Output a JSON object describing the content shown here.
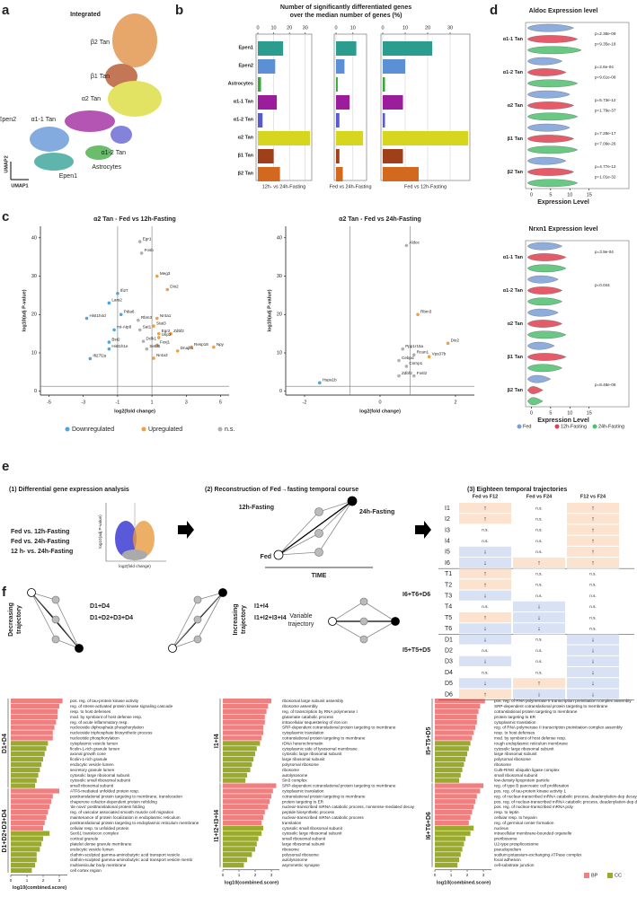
{
  "panel_labels": [
    "a",
    "b",
    "c",
    "d",
    "e",
    "f"
  ],
  "panel_a": {
    "title": "Integrated",
    "clusters": [
      "β2 Tan",
      "β1 Tan",
      "α2 Tan",
      "α1-1 Tan",
      "Epen2",
      "Epen1",
      "α1-2 Tan",
      "Astrocytes"
    ],
    "y_axis": "UMAP2",
    "x_axis": "UMAP1"
  },
  "chart_data": [
    {
      "type": "facet-bar",
      "title": [
        "Number of significantly differentiated genes",
        "over the median number of genes (%)"
      ],
      "categories": [
        "Epen1",
        "Epen2",
        "Astrocytes",
        "α1-1 Tan",
        "α1-2 Tan",
        "α2 Tan",
        "β1 Tan",
        "β2 Tan"
      ],
      "colors": [
        "#2a9d8f",
        "#5b8fd6",
        "#3aa63a",
        "#9b1d9b",
        "#5a5acf",
        "#d6d61f",
        "#a0401a",
        "#d2691e"
      ],
      "panels": [
        {
          "label": "12h- vs 24h-Fasting",
          "values": [
            16,
            11,
            2,
            12,
            3,
            33,
            10,
            14
          ],
          "xlim": [
            0,
            33
          ],
          "xticks": [
            0,
            10,
            20,
            30
          ]
        },
        {
          "label": "Fed vs 24h-Fasting",
          "values": [
            12,
            5,
            1,
            8,
            2,
            16,
            2,
            4
          ],
          "xlim": [
            0,
            17
          ],
          "xticks": [
            0,
            10
          ]
        },
        {
          "label": "Fed vs 12h-Fasting",
          "values": [
            22,
            10,
            1,
            9,
            1,
            38,
            9,
            16
          ],
          "xlim": [
            0,
            38
          ],
          "xticks": [
            0,
            10,
            20,
            30
          ]
        }
      ]
    },
    {
      "type": "volcano",
      "title": "α2 Tan - Fed vs 12h-Fasting",
      "x_label": "log2(fold change)",
      "y_label": "log10(adj P-value)",
      "xlim": [
        -5.5,
        5.5
      ],
      "xticks": [
        -5,
        -3,
        -1,
        1,
        3,
        5
      ],
      "ylim": [
        -1,
        43
      ],
      "yticks": [
        0,
        10,
        20,
        30,
        40
      ],
      "vlines": [
        -1,
        1
      ],
      "hline": 1.3,
      "series": [
        {
          "name": "Downregulated",
          "color": "#4da6e0",
          "x": [
            -1.0,
            -1.5,
            -0.8,
            -2.8,
            -1.2,
            -1.5,
            -1.5,
            -2.6
          ],
          "values": [
            25.5,
            23,
            20,
            19,
            16,
            12.8,
            11,
            8.5
          ],
          "labels": [
            "Ifi27",
            "Lars2",
            "Pdia6",
            "Hist1h4d",
            "mt-Atp8",
            "Bst2",
            "Hist1h1e",
            "Ifi27l2a"
          ]
        },
        {
          "name": "Upregulated",
          "color": "#f0a040",
          "x": [
            1.3,
            1.9,
            1.3,
            1.1,
            1.4,
            2.1,
            1.4,
            3.3,
            4.6,
            1.3,
            2.5,
            1.1
          ],
          "values": [
            30,
            26.5,
            19,
            17,
            15,
            15,
            14,
            11.5,
            11.5,
            12,
            10.5,
            8.6
          ],
          "labels": [
            "Meg3",
            "Dio2",
            "Nr4a1",
            "Stat3",
            "Egr2",
            "Zdbf2",
            "Usp2",
            "Resp18",
            "Npy",
            "Foxj1",
            "Dnajb1",
            "Nr4a3"
          ]
        },
        {
          "name": "n.s.",
          "color": "#b0b0b0",
          "x": [
            0.3,
            0.4,
            0.2,
            0.3,
            0.5,
            0.7
          ],
          "values": [
            39,
            36,
            18.5,
            16,
            13,
            11
          ],
          "labels": [
            "Egr1",
            "Fosb",
            "Rbm3",
            "Sat1",
            "Dclk1",
            "Setd5"
          ]
        }
      ]
    },
    {
      "type": "volcano",
      "title": "α2 Tan - Fed vs 24h-Fasting",
      "x_label": "log2(fold change)",
      "y_label": "log10(adj P-value)",
      "xlim": [
        -2.5,
        2.5
      ],
      "xticks": [
        -2,
        0,
        2
      ],
      "ylim": [
        -1,
        43
      ],
      "yticks": [
        0,
        10,
        20,
        30,
        40
      ],
      "vlines": [
        -0.8,
        0.8
      ],
      "hline": 1.3,
      "series": [
        {
          "name": "Downregulated",
          "color": "#4da6e0",
          "x": [
            -1.6
          ],
          "values": [
            2.2
          ],
          "labels": [
            "Hspa1b"
          ]
        },
        {
          "name": "Upregulated",
          "color": "#f0a040",
          "x": [
            1.0,
            1.8,
            1.3
          ],
          "values": [
            20,
            12.5,
            9
          ],
          "labels": [
            "Rbm3",
            "Dio2",
            "Vps37b"
          ]
        },
        {
          "name": "n.s.",
          "color": "#b0b0b0",
          "x": [
            0.7,
            0.6,
            0.9,
            0.5,
            0.7,
            0.5,
            0.9
          ],
          "values": [
            38,
            11,
            9.5,
            8,
            6.5,
            4,
            4
          ],
          "labels": [
            "Aldoc",
            "Ppp1r15a",
            "Rcan1",
            "Cebpd",
            "Csrnp1",
            "Zdbf2",
            "Fosl2"
          ]
        }
      ]
    },
    {
      "type": "violin",
      "title": "Aldoc Expression level",
      "x_label": "Expression Level",
      "xlim": [
        -1.5,
        16
      ],
      "xticks": [
        0,
        5,
        10,
        15
      ],
      "categories": [
        "α1-1 Tan",
        "α1-2 Tan",
        "α2 Tan",
        "β1 Tan",
        "β2 Tan"
      ],
      "p_values": [
        [
          "p=2.38e-09",
          "p=9.35e-18"
        ],
        [
          "p=2.6e-04",
          "p=9.61e-08"
        ],
        [
          "p=5.73e-12",
          "p=1.79e-37"
        ],
        [
          "p=7.28e-17",
          "p=7.09e-26"
        ],
        [
          "p=4.77e-12",
          "p=1.01e-32"
        ]
      ],
      "series": [
        {
          "name": "Fed",
          "color": "#7b9fd6",
          "values": [
            11,
            8,
            10,
            10,
            9
          ]
        },
        {
          "name": "12h-Fasting",
          "color": "#e04050",
          "values": [
            12,
            9,
            11,
            11,
            11
          ]
        },
        {
          "name": "24h-Fasting",
          "color": "#4fbf6f",
          "values": [
            13,
            12,
            12,
            12,
            12
          ]
        }
      ]
    },
    {
      "type": "violin",
      "title": "Nrxn1 Expression level",
      "x_label": "Expression Level",
      "xlim": [
        -1.5,
        16
      ],
      "xticks": [
        0,
        5,
        10,
        15
      ],
      "categories": [
        "α1-1 Tan",
        "α1-2 Tan",
        "α2 Tan",
        "β1 Tan",
        "β2 Tan"
      ],
      "p_values": [
        [
          "p=3.9e-04"
        ],
        [
          "p=0.044"
        ],
        [],
        [],
        [
          "p=8.48e-06"
        ]
      ],
      "legend": "bottom",
      "series": [
        {
          "name": "Fed",
          "color": "#7b9fd6",
          "values": [
            8,
            7,
            7,
            6,
            5
          ]
        },
        {
          "name": "12h-Fasting",
          "color": "#e04050",
          "values": [
            9,
            8,
            8,
            9,
            3
          ]
        },
        {
          "name": "24h-Fasting",
          "color": "#4fbf6f",
          "values": [
            9,
            8,
            9,
            8,
            3
          ]
        }
      ]
    },
    {
      "type": "go-bar",
      "x_label": "log10(combined.score)",
      "xlim": [
        0,
        3.5
      ],
      "xticks": [
        0,
        1,
        2,
        3
      ],
      "bp_color": "#f08080",
      "cc_color": "#9aaa2a",
      "label_color": "#2a2ad0",
      "groups": [
        {
          "label": "D1+D4",
          "bp_terms": [
            "pos. reg. of tau-protein kinase activity",
            "reg. of stress-activated protein kinase signaling cascade",
            "resp. to host defenses",
            "mod. by symbiont of host defense resp.",
            "reg. of acute inflammatory resp.",
            "nucleoside diphosphate phosphorylation",
            "nucleoside triphosphate biosynthetic process",
            "nucleotide phosphorylation"
          ],
          "bp_values": [
            3.2,
            3.0,
            2.9,
            2.9,
            2.8,
            2.7,
            2.6,
            2.6
          ],
          "cc_terms": [
            "cytoplasmic vesicle lumen",
            "ficolin-1-rich granule lumen",
            "axonal growth cone",
            "ficolin-1-rich granule",
            "endocytic vesicle lumen",
            "secretory granule lumen",
            "cytosolic large ribosomal subunit",
            "cytosolic small ribosomal subunit",
            "small ribosomal subunit"
          ],
          "cc_values": [
            2.3,
            2.2,
            2.1,
            2.0,
            1.9,
            1.8,
            1.7,
            1.6,
            1.5
          ]
        },
        {
          "label": "D1+D2+D3+D4",
          "bp_terms": [
            "ATF6-mediated unfolded protein resp.",
            "posttranslational protein targeting to membrane, translocation",
            "chaperone cofactor-dependent protein refolding",
            "'de novo' posttranslational protein folding",
            "reg. of vascular associated smooth muscle cell migration",
            "maintenance of protein localization in endoplasmic reticulum",
            "posttranslational protein targeting to endoplasmic reticulum membrane",
            "cellular resp. to unfolded protein"
          ],
          "bp_values": [
            3.0,
            2.6,
            2.5,
            2.4,
            2.3,
            2.2,
            2.1,
            2.0
          ],
          "cc_terms": [
            "Sec61 translocon complex",
            "cortical granule",
            "platelet dense granule membrane",
            "endocytic vesicle lumen",
            "clathrin-sculpted gamma-aminobutyric acid transport vesicle",
            "clathrin-sculpted gamma-aminobutyric acid transport vesicle memb",
            "multivesicular body membrane",
            "cell cortex region"
          ],
          "cc_values": [
            2.4,
            2.0,
            1.9,
            1.8,
            1.6,
            1.6,
            1.5,
            1.3
          ]
        }
      ]
    },
    {
      "type": "go-bar",
      "x_label": "log10(combined.score)",
      "xlim": [
        0,
        3.5
      ],
      "xticks": [
        0,
        1,
        2,
        3
      ],
      "bp_color": "#f08080",
      "cc_color": "#9aaa2a",
      "label_color": "#e8a020",
      "groups": [
        {
          "label": "I1+I4",
          "bp_terms": [
            "ribosomal large subunit assembly",
            "ribosome assembly",
            "reg. of transcription by RNA polymerase I",
            "glutamate catabolic process",
            "intracellular sequestering of iron ion",
            "SRP-dependent cotranslational protein targeting to membrane",
            "cytoplasmic translation",
            "cotranslational protein targeting to membrane"
          ],
          "bp_values": [
            3.0,
            2.8,
            2.7,
            2.6,
            2.6,
            2.5,
            2.5,
            2.4
          ],
          "cc_terms": [
            "rDNA heterochromatin",
            "cytoplasmic side of lysosomal membrane",
            "cytosolic large ribosomal subunit",
            "large ribosomal subunit",
            "polysomal ribosome",
            "ribosome",
            "autolysosome",
            "Sin3 complex"
          ],
          "cc_values": [
            2.3,
            2.1,
            2.0,
            1.9,
            1.8,
            1.7,
            1.5,
            1.4
          ]
        },
        {
          "label": "I1+I2+I3+I4",
          "bp_terms": [
            "SRP-dependent cotranslational protein targeting to membrane",
            "cytoplasmic translation",
            "cotranslational protein targeting to membrane",
            "protein targeting to ER",
            "nuclear-transcribed mRNA catabolic process, nonsense-mediated decay",
            "peptide biosynthetic process",
            "nuclear-transcribed mRNA catabolic process",
            "translation"
          ],
          "bp_values": [
            3.3,
            3.1,
            3.0,
            2.9,
            2.8,
            2.6,
            2.5,
            2.4
          ],
          "cc_terms": [
            "cytosolic small ribosomal subunit",
            "cytosolic large ribosomal subunit",
            "small ribosomal subunit",
            "large ribosomal subunit",
            "ribosome",
            "polysomal ribosome",
            "autolysosome",
            "asymmetric synapse"
          ],
          "cc_values": [
            2.5,
            2.4,
            2.2,
            2.1,
            2.0,
            1.8,
            1.5,
            1.3
          ]
        }
      ]
    },
    {
      "type": "go-bar",
      "x_label": "log10(combined.score)",
      "xlim": [
        0,
        3.5
      ],
      "xticks": [
        0,
        1,
        2,
        3
      ],
      "bp_color": "#f08080",
      "cc_color": "#9aaa2a",
      "label_color": "#222222",
      "legend": [
        "BP",
        "CC"
      ],
      "groups": [
        {
          "label": "I5+T5+D5",
          "bp_terms": [
            "pos. reg. of RNA polymerase II transcription preinitiation complex assembly",
            "SRP-dependent cotranslational protein targeting to membrane",
            "cotranslational protein targeting to membrane",
            "protein targeting to ER",
            "cytoplasmic translation",
            "reg. of RNA polymerase II transcription preinitiation complex assembly",
            "resp. to host defenses",
            "mod. by symbiont of host defense resp."
          ],
          "bp_values": [
            3.1,
            2.8,
            2.7,
            2.6,
            2.6,
            2.5,
            2.4,
            2.3
          ],
          "cc_terms": [
            "rough endoplasmic reticulum membrane",
            "cytosolic large ribosomal subunit",
            "large ribosomal subunit",
            "polysomal ribosome",
            "ribosome",
            "Cul5-RING ubiquitin ligase complex",
            "small ribosomal subunit",
            "low-density lipoprotein particle"
          ],
          "cc_values": [
            2.2,
            2.1,
            2.0,
            1.9,
            1.8,
            1.7,
            1.6,
            1.5
          ]
        },
        {
          "label": "I6+T6+D6",
          "bp_terms": [
            "reg. of type B pancreatic cell proliferation",
            "pos. reg. of tau-protein kinase activity 1",
            "reg. of nuclear-transcribed mRNA catabolic process, deadenylation-dep decay",
            "pos. reg. of nuclear-transcribed mRNA catabolic process, deadenylation-dep decay",
            "pos. reg. of nuclear-transcribed mRNA poly",
            "resp. to leptin",
            "cellular resp. to heparin",
            "reg. of germinal center formation"
          ],
          "bp_values": [
            3.0,
            2.8,
            2.6,
            2.5,
            2.4,
            2.3,
            2.2,
            2.1
          ],
          "cc_terms": [
            "nucleus",
            "intracellular membrane-bounded organelle",
            "preribosome",
            "U2-type prespliceosome",
            "pseudopodium",
            "sodium:potassium-exchanging ATPase complex",
            "focal adhesion",
            "cell-substrate junction"
          ],
          "cc_values": [
            2.4,
            2.2,
            1.9,
            1.8,
            1.7,
            1.6,
            1.5,
            1.4
          ]
        }
      ]
    }
  ],
  "panel_e": {
    "step1": {
      "title": "(1) Differential gene expression analysis",
      "comparisons": [
        "Fed vs. 12h-Fasting",
        "Fed vs. 24h-Fasting",
        "12 h- vs. 24h-Fasting"
      ],
      "y_label": "log10(adj P-value)",
      "x_label": "log2(fold change)"
    },
    "step2": {
      "title": "(2) Reconstruction of Fed→fasting temporal course",
      "nodes": [
        "12h-Fasting",
        "24h-Fasting",
        "Fed"
      ],
      "axis": "TIME"
    },
    "step3": {
      "title": "(3) Eighteen temporal trajectories",
      "header": [
        "Fed vs F12",
        "Fed vs F24",
        "F12 vs F24"
      ],
      "rows": [
        [
          "I1",
          "↑",
          "n.s.",
          "↑"
        ],
        [
          "I2",
          "↑",
          "n.s.",
          "↑"
        ],
        [
          "I3",
          "n.s.",
          "n.s.",
          "↑"
        ],
        [
          "I4",
          "n.s.",
          "n.s.",
          "↑"
        ],
        [
          "I5",
          "↓",
          "n.s.",
          "↑"
        ],
        [
          "I6",
          "↓",
          "↑",
          "↑"
        ],
        [
          "T1",
          "↑",
          "n.s.",
          "n.s."
        ],
        [
          "T2",
          "↑",
          "n.s.",
          "n.s."
        ],
        [
          "T3",
          "↓",
          "n.s.",
          "n.s."
        ],
        [
          "T4",
          "n.s.",
          "↓",
          "n.s."
        ],
        [
          "T5",
          "↑",
          "↓",
          "n.s."
        ],
        [
          "T6",
          "↓",
          "↓",
          "n.s."
        ],
        [
          "D1",
          "↓",
          "n.s.",
          "↓"
        ],
        [
          "D2",
          "n.s.",
          "n.s.",
          "↓"
        ],
        [
          "D3",
          "↓",
          "n.s.",
          "↓"
        ],
        [
          "D4",
          "n.s.",
          "n.s.",
          "↓"
        ],
        [
          "D5",
          "↓",
          "↑",
          "↓"
        ],
        [
          "D6",
          "↑",
          "↓",
          "↓"
        ]
      ]
    }
  },
  "panel_f": {
    "decreasing": {
      "title": [
        "Decreasing",
        "trajectory"
      ],
      "sets": [
        "D1+D4",
        "D1+D2+D3+D4"
      ]
    },
    "increasing": {
      "title": [
        "Increasing",
        "trajectory"
      ],
      "sets": [
        "I1+I4",
        "I1+I2+I3+I4"
      ]
    },
    "variable": {
      "title": [
        "Variable",
        "trajectory"
      ],
      "sets": [
        "I6+T6+D6",
        "I5+T5+D5"
      ]
    }
  }
}
